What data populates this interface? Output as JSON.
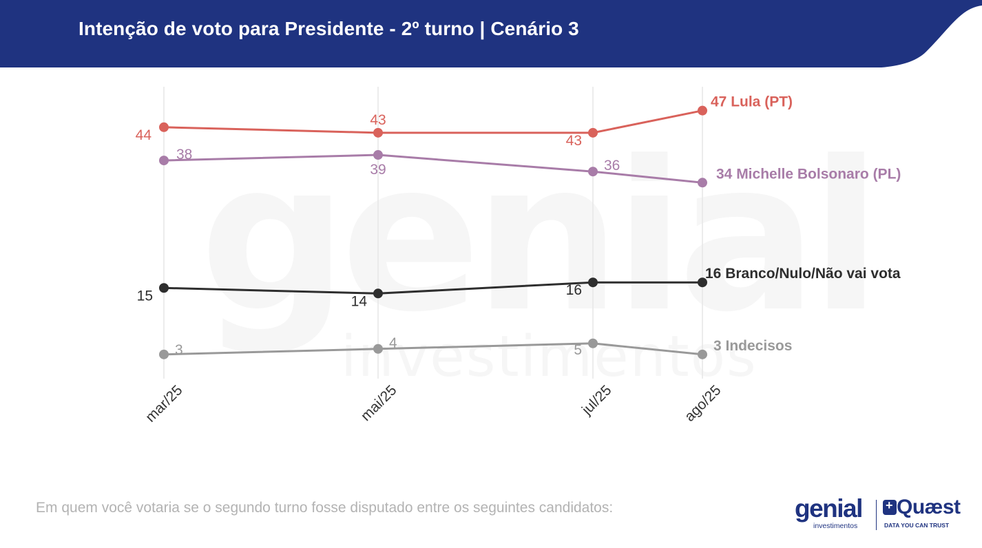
{
  "header": {
    "title": "Intenção de voto para Presidente - 2º turno | Cenário 3"
  },
  "footnote": "Em quem você votaria se o segundo turno fosse disputado entre os seguintes candidatos:",
  "logos": {
    "genial": "genial",
    "genial_sub": "investimentos",
    "quaest": "Quæst",
    "quaest_sub": "DATA YOU CAN TRUST"
  },
  "watermark": {
    "line1": "genial",
    "line2": "investimentos"
  },
  "colors": {
    "header": "#1f3380",
    "lula": "#d9625b",
    "michelle": "#a87ca8",
    "branco": "#2e2e2e",
    "indecisos": "#999999",
    "grid": "#e6e6e6"
  },
  "chart_data": {
    "type": "line",
    "title": "",
    "xlabel": "",
    "ylabel": "",
    "categories": [
      "mar/25",
      "mai/25",
      "jul/25",
      "ago/25"
    ],
    "ylim": [
      0,
      50
    ],
    "grid": "vertical",
    "series": [
      {
        "name": "Lula (PT)",
        "end_label": "47 Lula (PT)",
        "values": [
          44,
          43,
          43,
          47
        ],
        "color": "#d9625b"
      },
      {
        "name": "Michelle Bolsonaro (PL)",
        "end_label": "34 Michelle Bolsonaro (PL)",
        "values": [
          38,
          39,
          36,
          34
        ],
        "color": "#a87ca8"
      },
      {
        "name": "Branco/Nulo/Não vai vota",
        "end_label": "16 Branco/Nulo/Não vai vota",
        "values": [
          15,
          14,
          16,
          16
        ],
        "color": "#2e2e2e"
      },
      {
        "name": "Indecisos",
        "end_label": "3 Indecisos",
        "values": [
          3,
          4,
          5,
          3
        ],
        "color": "#999999"
      }
    ]
  }
}
